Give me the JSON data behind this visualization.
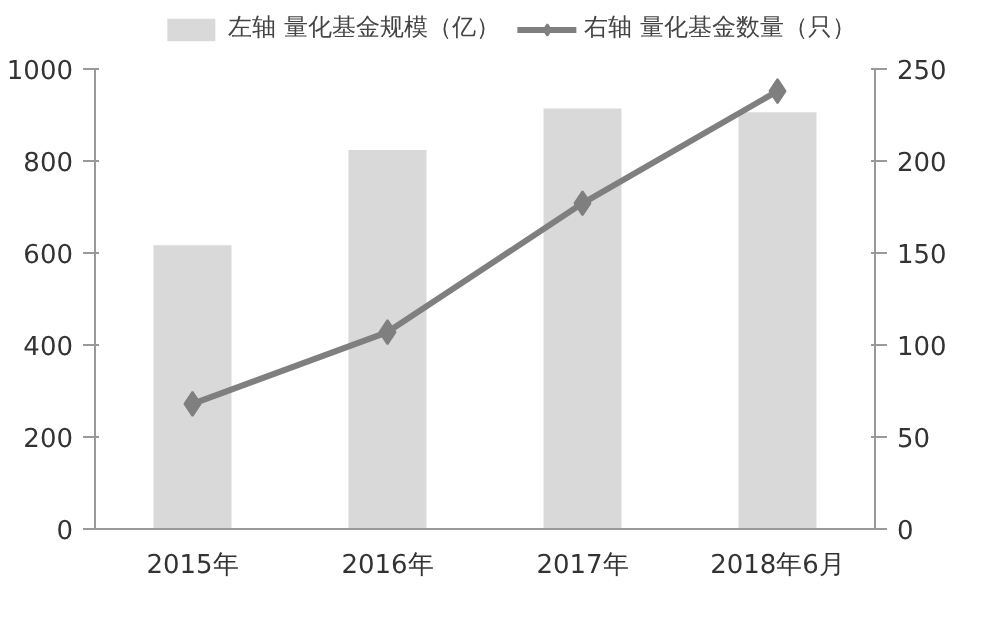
{
  "chart_data": {
    "type": "bar",
    "categories": [
      "2015年",
      "2016年",
      "2017年",
      "2018年6月"
    ],
    "series": [
      {
        "name": "左轴 量化基金规模（亿）",
        "color": "#d9d9d9",
        "values": [
          617,
          824,
          914,
          906
        ]
      },
      {
        "name": "右轴 量化基金数量（只）",
        "type": "line",
        "axis": "y2",
        "color": "#7f7f7f",
        "marker": "diamond",
        "values": [
          68,
          107,
          177,
          238
        ]
      }
    ],
    "ylim": [
      0,
      1000
    ],
    "yticks": [
      0,
      200,
      400,
      600,
      800,
      1000
    ],
    "y2lim": [
      0,
      250
    ],
    "y2ticks": [
      0,
      50,
      100,
      150,
      200,
      250
    ],
    "legend": "top",
    "grid": false
  }
}
